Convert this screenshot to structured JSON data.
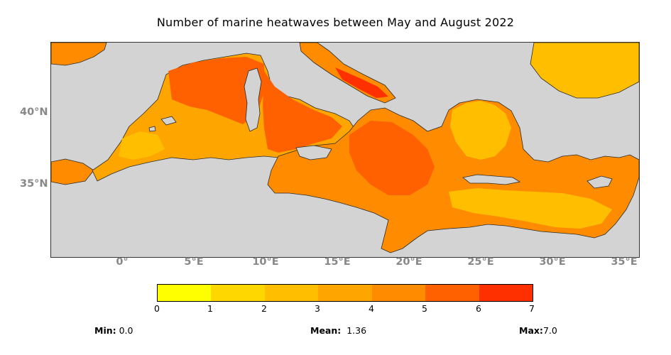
{
  "title": "Number of marine heatwaves between May and August 2022",
  "lat_labels": [
    "40°N",
    "35°N"
  ],
  "lon_labels": [
    "0°",
    "5°E",
    "10°E",
    "15°E",
    "20°E",
    "25°E",
    "30°E",
    "35°E"
  ],
  "colorbar": {
    "ticks": [
      "0",
      "1",
      "2",
      "3",
      "4",
      "5",
      "6",
      "7"
    ],
    "colors": [
      "#ffff00",
      "#ffd700",
      "#ffbf00",
      "#ffa500",
      "#ff8c00",
      "#ff6000",
      "#ff3000",
      "#ff0000"
    ]
  },
  "stats": {
    "min_label": "Min:",
    "min_value": "0.0",
    "mean_label": "Mean:",
    "mean_value": "1.36",
    "max_label": "Max:",
    "max_value": "7.0"
  },
  "colors": {
    "land": "#d3d3d3",
    "axis_label": "#888888",
    "coast": "#2a2a2a"
  }
}
